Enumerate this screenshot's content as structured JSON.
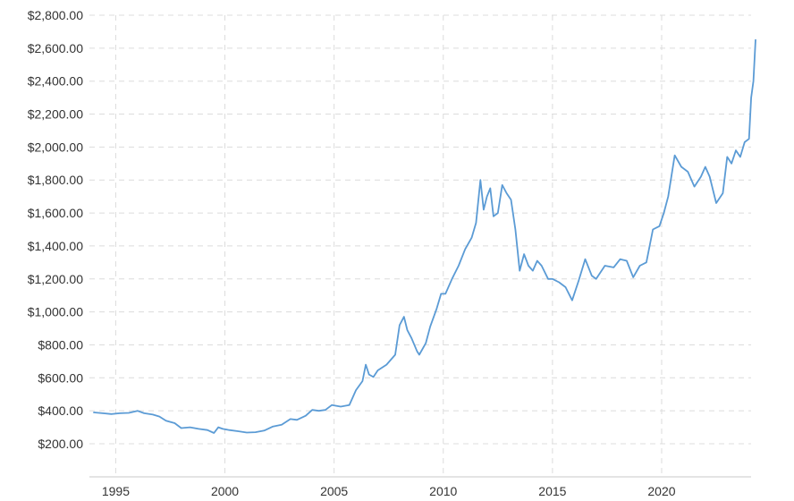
{
  "chart_data": {
    "type": "line",
    "title": "",
    "xlabel": "",
    "ylabel": "",
    "xlim": [
      1994.0,
      2024.3
    ],
    "ylim": [
      60,
      2800
    ],
    "y_ticks": [
      {
        "value": 200,
        "label": "$200.00"
      },
      {
        "value": 400,
        "label": "$400.00"
      },
      {
        "value": 600,
        "label": "$600.00"
      },
      {
        "value": 800,
        "label": "$800.00"
      },
      {
        "value": 1000,
        "label": "$1,000.00"
      },
      {
        "value": 1200,
        "label": "$1,200.00"
      },
      {
        "value": 1400,
        "label": "$1,400.00"
      },
      {
        "value": 1600,
        "label": "$1,600.00"
      },
      {
        "value": 1800,
        "label": "$1,800.00"
      },
      {
        "value": 2000,
        "label": "$2,000.00"
      },
      {
        "value": 2200,
        "label": "$2,200.00"
      },
      {
        "value": 2400,
        "label": "$2,400.00"
      },
      {
        "value": 2600,
        "label": "$2,600.00"
      },
      {
        "value": 2800,
        "label": "$2,800.00"
      }
    ],
    "x_ticks": [
      {
        "value": 1995,
        "label": "1995"
      },
      {
        "value": 2000,
        "label": "2000"
      },
      {
        "value": 2005,
        "label": "2005"
      },
      {
        "value": 2010,
        "label": "2010"
      },
      {
        "value": 2015,
        "label": "2015"
      },
      {
        "value": 2020,
        "label": "2020"
      }
    ],
    "grid": true,
    "legend": "none",
    "series": [
      {
        "color": "#5b9bd5",
        "x": [
          1994.0,
          1994.4,
          1994.8,
          1995.2,
          1995.6,
          1996.0,
          1996.3,
          1996.7,
          1997.0,
          1997.3,
          1997.7,
          1998.0,
          1998.4,
          1998.8,
          1999.2,
          1999.5,
          1999.7,
          1999.9,
          2000.2,
          2000.6,
          2001.0,
          2001.4,
          2001.8,
          2002.2,
          2002.6,
          2003.0,
          2003.3,
          2003.7,
          2004.0,
          2004.3,
          2004.6,
          2004.9,
          2005.3,
          2005.7,
          2006.0,
          2006.3,
          2006.45,
          2006.6,
          2006.8,
          2007.0,
          2007.4,
          2007.8,
          2008.0,
          2008.2,
          2008.35,
          2008.55,
          2008.8,
          2008.9,
          2009.2,
          2009.4,
          2009.7,
          2009.9,
          2010.1,
          2010.4,
          2010.7,
          2011.0,
          2011.3,
          2011.5,
          2011.7,
          2011.85,
          2012.0,
          2012.15,
          2012.3,
          2012.5,
          2012.7,
          2012.9,
          2013.1,
          2013.3,
          2013.5,
          2013.7,
          2013.9,
          2014.1,
          2014.3,
          2014.5,
          2014.8,
          2015.0,
          2015.3,
          2015.6,
          2015.9,
          2016.2,
          2016.5,
          2016.8,
          2017.0,
          2017.4,
          2017.8,
          2018.1,
          2018.4,
          2018.7,
          2019.0,
          2019.3,
          2019.6,
          2019.9,
          2020.1,
          2020.3,
          2020.6,
          2020.9,
          2021.2,
          2021.5,
          2021.8,
          2022.0,
          2022.2,
          2022.5,
          2022.8,
          2023.0,
          2023.2,
          2023.4,
          2023.6,
          2023.8,
          2024.0,
          2024.1,
          2024.2,
          2024.3
        ],
        "y": [
          390,
          385,
          380,
          385,
          387,
          400,
          385,
          377,
          365,
          340,
          325,
          295,
          300,
          290,
          283,
          265,
          300,
          290,
          283,
          276,
          268,
          270,
          280,
          305,
          315,
          350,
          345,
          370,
          405,
          400,
          405,
          435,
          425,
          435,
          525,
          580,
          680,
          620,
          605,
          645,
          680,
          740,
          920,
          970,
          890,
          840,
          760,
          740,
          810,
          910,
          1020,
          1110,
          1110,
          1200,
          1280,
          1380,
          1450,
          1540,
          1800,
          1620,
          1700,
          1750,
          1580,
          1600,
          1770,
          1720,
          1680,
          1500,
          1250,
          1350,
          1280,
          1250,
          1310,
          1280,
          1200,
          1200,
          1180,
          1150,
          1070,
          1190,
          1320,
          1220,
          1200,
          1280,
          1270,
          1320,
          1310,
          1210,
          1280,
          1300,
          1500,
          1520,
          1600,
          1700,
          1950,
          1880,
          1850,
          1760,
          1820,
          1880,
          1820,
          1660,
          1720,
          1940,
          1900,
          1980,
          1940,
          2030,
          2050,
          2300,
          2400,
          2650
        ]
      }
    ]
  }
}
